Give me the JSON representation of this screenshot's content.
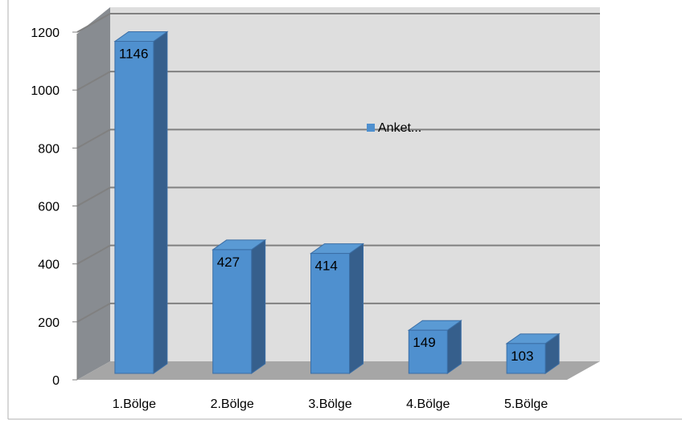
{
  "chart_data": {
    "type": "bar",
    "title": "",
    "xlabel": "",
    "ylabel": "",
    "categories": [
      "1.Bölge",
      "2.Bölge",
      "3.Bölge",
      "4.Bölge",
      "5.Bölge"
    ],
    "series": [
      {
        "name": "Anket...",
        "values": [
          1146,
          427,
          414,
          149,
          103
        ]
      }
    ],
    "ylim": [
      0,
      1200
    ],
    "yticks": [
      "0",
      "200",
      "400",
      "600",
      "800",
      "1000",
      "1200"
    ],
    "three_d": true,
    "grid": true,
    "legend_position": "middle",
    "colors": {
      "bar_front": "#4f90cf",
      "bar_side": "#365f8c",
      "bar_top": "#5a9ad4",
      "bar_outline": "#3b6ea5",
      "back_wall": "#dedede",
      "side_wall": "#888c91",
      "floor": "#a6a6a6",
      "gridline": "#808080"
    }
  }
}
